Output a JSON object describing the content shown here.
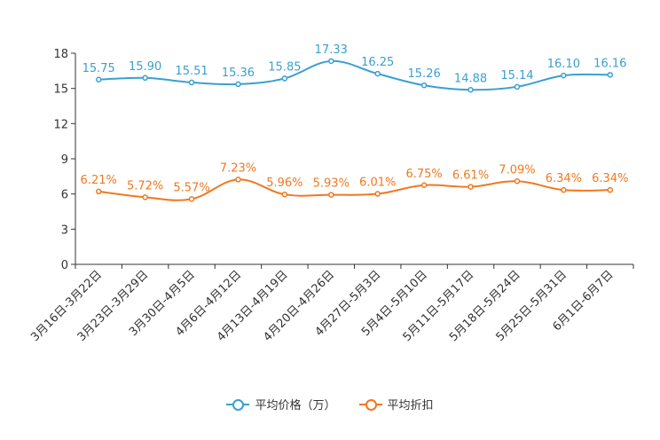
{
  "chart_data": {
    "type": "line",
    "title": "",
    "xlabel": "",
    "ylabel": "",
    "ylim": [
      0,
      18
    ],
    "yticks": [
      0,
      3,
      6,
      9,
      12,
      15,
      18
    ],
    "ytick_labels": [
      "0",
      "3",
      "6",
      "9",
      "12",
      "15",
      "18"
    ],
    "grid": false,
    "legend_position": "bottom-center",
    "categories": [
      "3月16日-3月22日",
      "3月23日-3月29日",
      "3月30日-4月5日",
      "4月6日-4月12日",
      "4月13日-4月19日",
      "4月20日-4月26日",
      "4月27日-5月3日",
      "5月4日-5月10日",
      "5月11日-5月17日",
      "5月18日-5月24日",
      "5月25日-5月31日",
      "6月1日-6月7日"
    ],
    "series": [
      {
        "name": "平均价格（万）",
        "color": "#3aa0cf",
        "values": [
          15.75,
          15.9,
          15.51,
          15.36,
          15.85,
          17.33,
          16.25,
          15.26,
          14.88,
          15.14,
          16.1,
          16.16
        ],
        "labels": [
          "15.75",
          "15.90",
          "15.51",
          "15.36",
          "15.85",
          "17.33",
          "16.25",
          "15.26",
          "14.88",
          "15.14",
          "16.10",
          "16.16"
        ]
      },
      {
        "name": "平均折扣",
        "color": "#f07820",
        "values": [
          6.21,
          5.72,
          5.57,
          7.23,
          5.96,
          5.93,
          6.01,
          6.75,
          6.61,
          7.09,
          6.34,
          6.34
        ],
        "labels": [
          "6.21%",
          "5.72%",
          "5.57%",
          "7.23%",
          "5.96%",
          "5.93%",
          "6.01%",
          "6.75%",
          "6.61%",
          "7.09%",
          "6.34%",
          "6.34%"
        ]
      }
    ]
  }
}
